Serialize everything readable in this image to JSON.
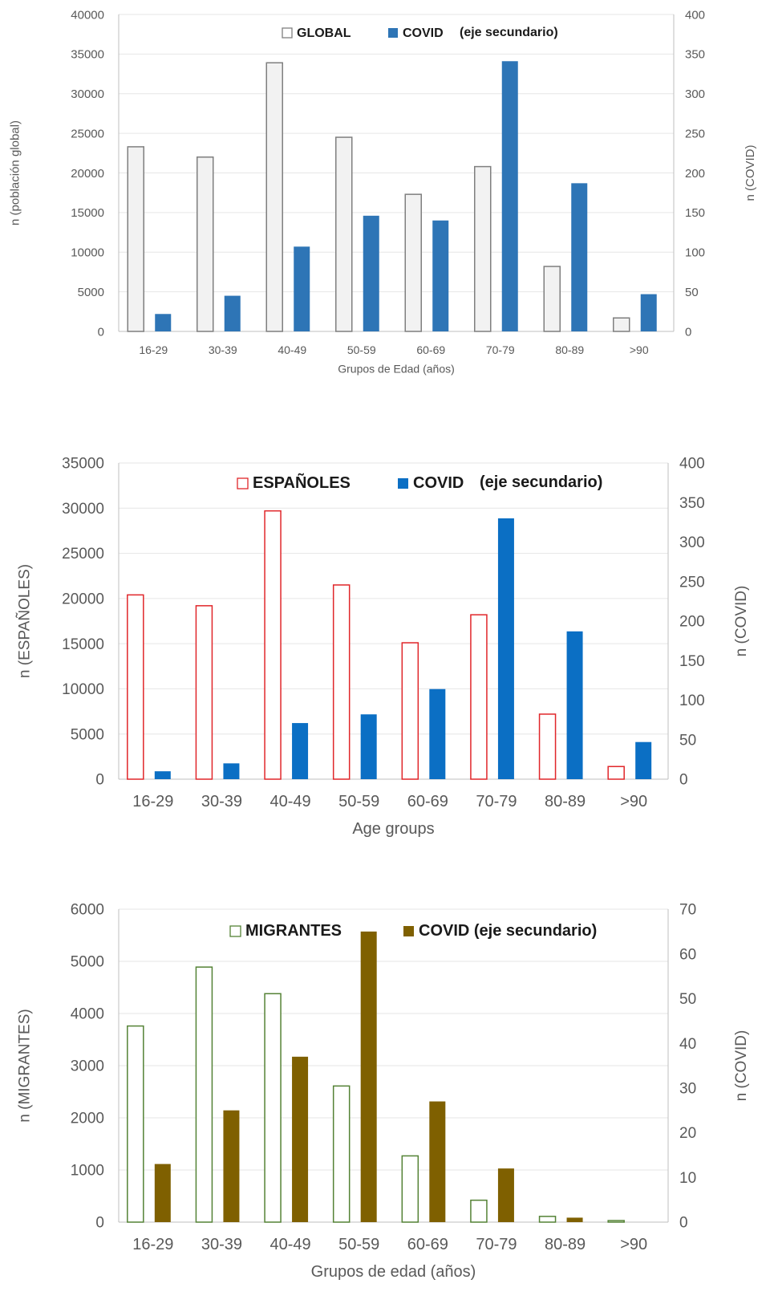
{
  "chart_data": [
    {
      "type": "bar",
      "title": "",
      "xlabel": "Grupos de Edad (años)",
      "ylabel": "n (población global)",
      "y2label": "n (COVID)",
      "categories": [
        "16-29",
        "30-39",
        "40-49",
        "50-59",
        "60-69",
        "70-79",
        "80-89",
        ">90"
      ],
      "ylim": [
        0,
        40000
      ],
      "y2lim": [
        0,
        400
      ],
      "y_ticks": [
        0,
        5000,
        10000,
        15000,
        20000,
        25000,
        30000,
        35000,
        40000
      ],
      "y2_ticks": [
        0,
        50,
        100,
        150,
        200,
        250,
        300,
        350,
        400
      ],
      "grid": true,
      "legend_position": "top",
      "series": [
        {
          "name": "GLOBAL",
          "axis": "primary",
          "values": [
            23300,
            22000,
            33900,
            24500,
            17300,
            20800,
            8200,
            1700
          ],
          "style": "outline-fill",
          "color": "#7f7f7f",
          "fill": "#f2f2f2"
        },
        {
          "name": "COVID",
          "axis": "secondary",
          "values": [
            22,
            45,
            107,
            146,
            140,
            341,
            187,
            47
          ],
          "style": "solid",
          "color": "#2e75b6",
          "fill": "#2e75b6"
        }
      ],
      "legend_extra": "(eje secundario)"
    },
    {
      "type": "bar",
      "title": "",
      "xlabel": "Age groups",
      "ylabel": "n (ESPAÑOLES)",
      "y2label": "n (COVID)",
      "categories": [
        "16-29",
        "30-39",
        "40-49",
        "50-59",
        "60-69",
        "70-79",
        "80-89",
        ">90"
      ],
      "ylim": [
        0,
        35000
      ],
      "y2lim": [
        0,
        400
      ],
      "y_ticks": [
        0,
        5000,
        10000,
        15000,
        20000,
        25000,
        30000,
        35000
      ],
      "y2_ticks": [
        0,
        50,
        100,
        150,
        200,
        250,
        300,
        350,
        400
      ],
      "grid": true,
      "legend_position": "top",
      "series": [
        {
          "name": "ESPAÑOLES",
          "axis": "primary",
          "values": [
            20400,
            19200,
            29700,
            21500,
            15100,
            18200,
            7200,
            1400
          ],
          "style": "outline",
          "color": "#e0262a",
          "fill": "#ffffff"
        },
        {
          "name": "COVID",
          "axis": "secondary",
          "values": [
            10,
            20,
            71,
            82,
            114,
            330,
            187,
            47
          ],
          "style": "solid",
          "color": "#0b6fc4",
          "fill": "#0b6fc4"
        }
      ],
      "legend_extra": "(eje secundario)"
    },
    {
      "type": "bar",
      "title": "",
      "xlabel": "Grupos de edad (años)",
      "ylabel": "n (MIGRANTES)",
      "y2label": "n (COVID)",
      "categories": [
        "16-29",
        "30-39",
        "40-49",
        "50-59",
        "60-69",
        "70-79",
        "80-89",
        ">90"
      ],
      "ylim": [
        0,
        6000
      ],
      "y2lim": [
        0,
        70
      ],
      "y_ticks": [
        0,
        1000,
        2000,
        3000,
        4000,
        5000,
        6000
      ],
      "y2_ticks": [
        0,
        10,
        20,
        30,
        40,
        50,
        60,
        70
      ],
      "grid": true,
      "legend_position": "top",
      "series": [
        {
          "name": "MIGRANTES",
          "axis": "primary",
          "values": [
            3760,
            4890,
            4380,
            2610,
            1270,
            420,
            110,
            30
          ],
          "style": "outline",
          "color": "#548235",
          "fill": "#ffffff"
        },
        {
          "name": "COVID (eje secundario)",
          "axis": "secondary",
          "values": [
            13,
            25,
            37,
            65,
            27,
            12,
            1,
            0
          ],
          "style": "solid",
          "color": "#7f6000",
          "fill": "#7f6000"
        }
      ],
      "legend_extra": ""
    }
  ]
}
